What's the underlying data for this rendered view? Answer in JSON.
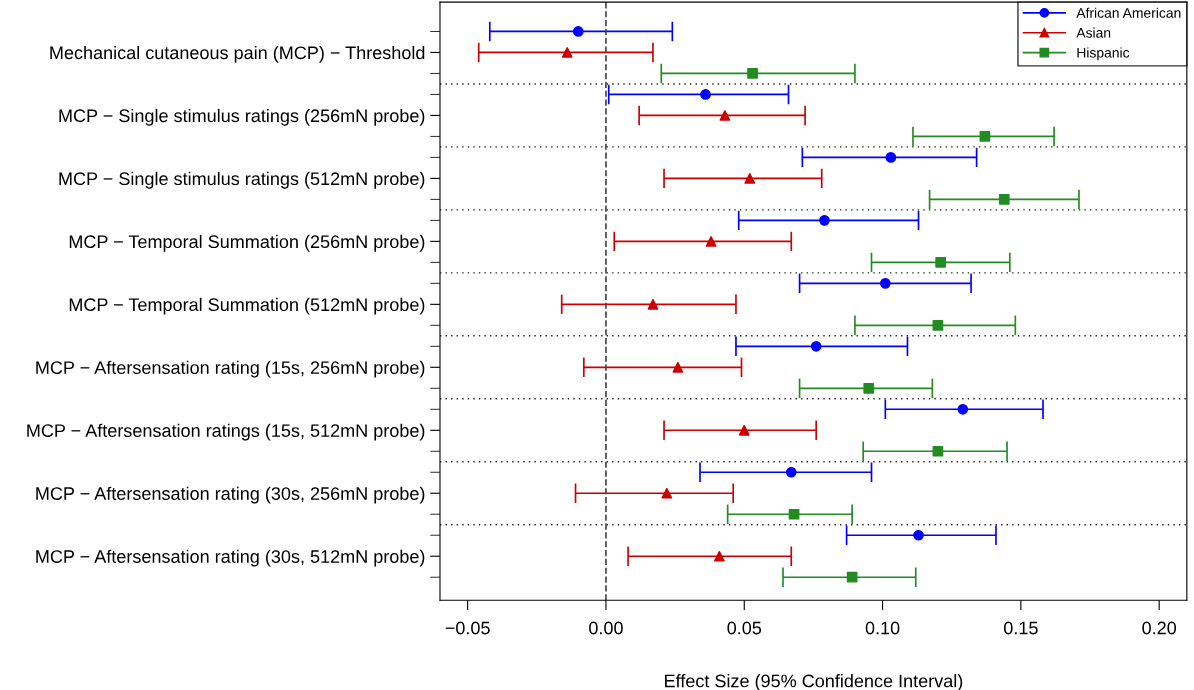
{
  "chart_data": {
    "type": "scatter",
    "orientation": "horizontal",
    "xlabel": "Effect Size (95% Confidence Interval)",
    "categories": [
      "Mechanical cutaneous pain (MCP) − Threshold",
      "MCP − Single stimulus ratings (256mN probe)",
      "MCP − Single stimulus ratings (512mN probe)",
      "MCP − Temporal Summation (256mN probe)",
      "MCP − Temporal Summation (512mN probe)",
      "MCP − Aftersensation rating (15s, 256mN probe)",
      "MCP − Aftersensation ratings (15s, 512mN probe)",
      "MCP − Aftersensation rating (30s, 256mN probe)",
      "MCP − Aftersensation rating (30s, 512mN probe)"
    ],
    "series": [
      {
        "name": "African American",
        "color": "#0000ff",
        "marker": "circle",
        "values": [
          -0.01,
          0.036,
          0.103,
          0.079,
          0.101,
          0.076,
          0.129,
          0.067,
          0.113
        ],
        "errors": [
          [
            -0.042,
            0.024
          ],
          [
            0.001,
            0.066
          ],
          [
            0.071,
            0.134
          ],
          [
            0.048,
            0.113
          ],
          [
            0.07,
            0.132
          ],
          [
            0.047,
            0.109
          ],
          [
            0.101,
            0.158
          ],
          [
            0.034,
            0.096
          ],
          [
            0.087,
            0.141
          ]
        ]
      },
      {
        "name": "Asian",
        "color": "#cc0000",
        "marker": "triangle",
        "values": [
          -0.014,
          0.043,
          0.052,
          0.038,
          0.017,
          0.026,
          0.05,
          0.022,
          0.041
        ],
        "errors": [
          [
            -0.046,
            0.017
          ],
          [
            0.012,
            0.072
          ],
          [
            0.021,
            0.078
          ],
          [
            0.003,
            0.067
          ],
          [
            -0.016,
            0.047
          ],
          [
            -0.008,
            0.049
          ],
          [
            0.021,
            0.076
          ],
          [
            -0.011,
            0.046
          ],
          [
            0.008,
            0.067
          ]
        ]
      },
      {
        "name": "Hispanic",
        "color": "#228b22",
        "marker": "square",
        "values": [
          0.053,
          0.137,
          0.144,
          0.121,
          0.12,
          0.095,
          0.12,
          0.068,
          0.089
        ],
        "errors": [
          [
            0.02,
            0.09
          ],
          [
            0.111,
            0.162
          ],
          [
            0.117,
            0.171
          ],
          [
            0.096,
            0.146
          ],
          [
            0.09,
            0.148
          ],
          [
            0.07,
            0.118
          ],
          [
            0.093,
            0.145
          ],
          [
            0.044,
            0.089
          ],
          [
            0.064,
            0.112
          ]
        ]
      }
    ],
    "xlim": [
      -0.06,
      0.21
    ],
    "xticks": [
      {
        "value": -0.05,
        "label": "−0.05"
      },
      {
        "value": 0,
        "label": "0.00"
      },
      {
        "value": 0.05,
        "label": "0.05"
      },
      {
        "value": 0.1,
        "label": "0.10"
      },
      {
        "value": 0.15,
        "label": "0.15"
      },
      {
        "value": 0.2,
        "label": "0.20"
      }
    ],
    "ref_lines": [
      {
        "axis": "x",
        "value": 0,
        "color": "#444444",
        "line_style": "dashed"
      }
    ],
    "legend": "top right",
    "line_style": "solid"
  }
}
